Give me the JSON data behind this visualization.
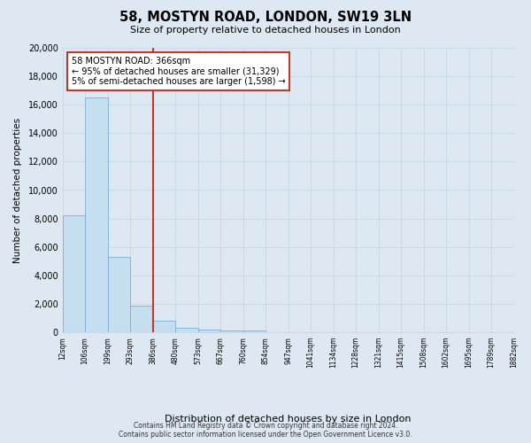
{
  "title": "58, MOSTYN ROAD, LONDON, SW19 3LN",
  "subtitle": "Size of property relative to detached houses in London",
  "xlabel": "Distribution of detached houses by size in London",
  "ylabel": "Number of detached properties",
  "bar_values": [
    8200,
    16500,
    5300,
    1850,
    800,
    300,
    200,
    150,
    100,
    0,
    0,
    0,
    0,
    0,
    0,
    0,
    0,
    0,
    0,
    0
  ],
  "categories": [
    "12sqm",
    "106sqm",
    "199sqm",
    "293sqm",
    "386sqm",
    "480sqm",
    "573sqm",
    "667sqm",
    "760sqm",
    "854sqm",
    "947sqm",
    "1041sqm",
    "1134sqm",
    "1228sqm",
    "1321sqm",
    "1415sqm",
    "1508sqm",
    "1602sqm",
    "1695sqm",
    "1789sqm",
    "1882sqm"
  ],
  "bar_color": "#c6dff0",
  "bar_edge_color": "#7bafd4",
  "vline_color": "#c0392b",
  "ylim": [
    0,
    20000
  ],
  "yticks": [
    0,
    2000,
    4000,
    6000,
    8000,
    10000,
    12000,
    14000,
    16000,
    18000,
    20000
  ],
  "annotation_title": "58 MOSTYN ROAD: 366sqm",
  "annotation_line1": "← 95% of detached houses are smaller (31,329)",
  "annotation_line2": "5% of semi-detached houses are larger (1,598) →",
  "footer_line1": "Contains HM Land Registry data © Crown copyright and database right 2024.",
  "footer_line2": "Contains public sector information licensed under the Open Government Licence v3.0.",
  "grid_color": "#ccd9e8",
  "bg_color": "#dde8f2"
}
